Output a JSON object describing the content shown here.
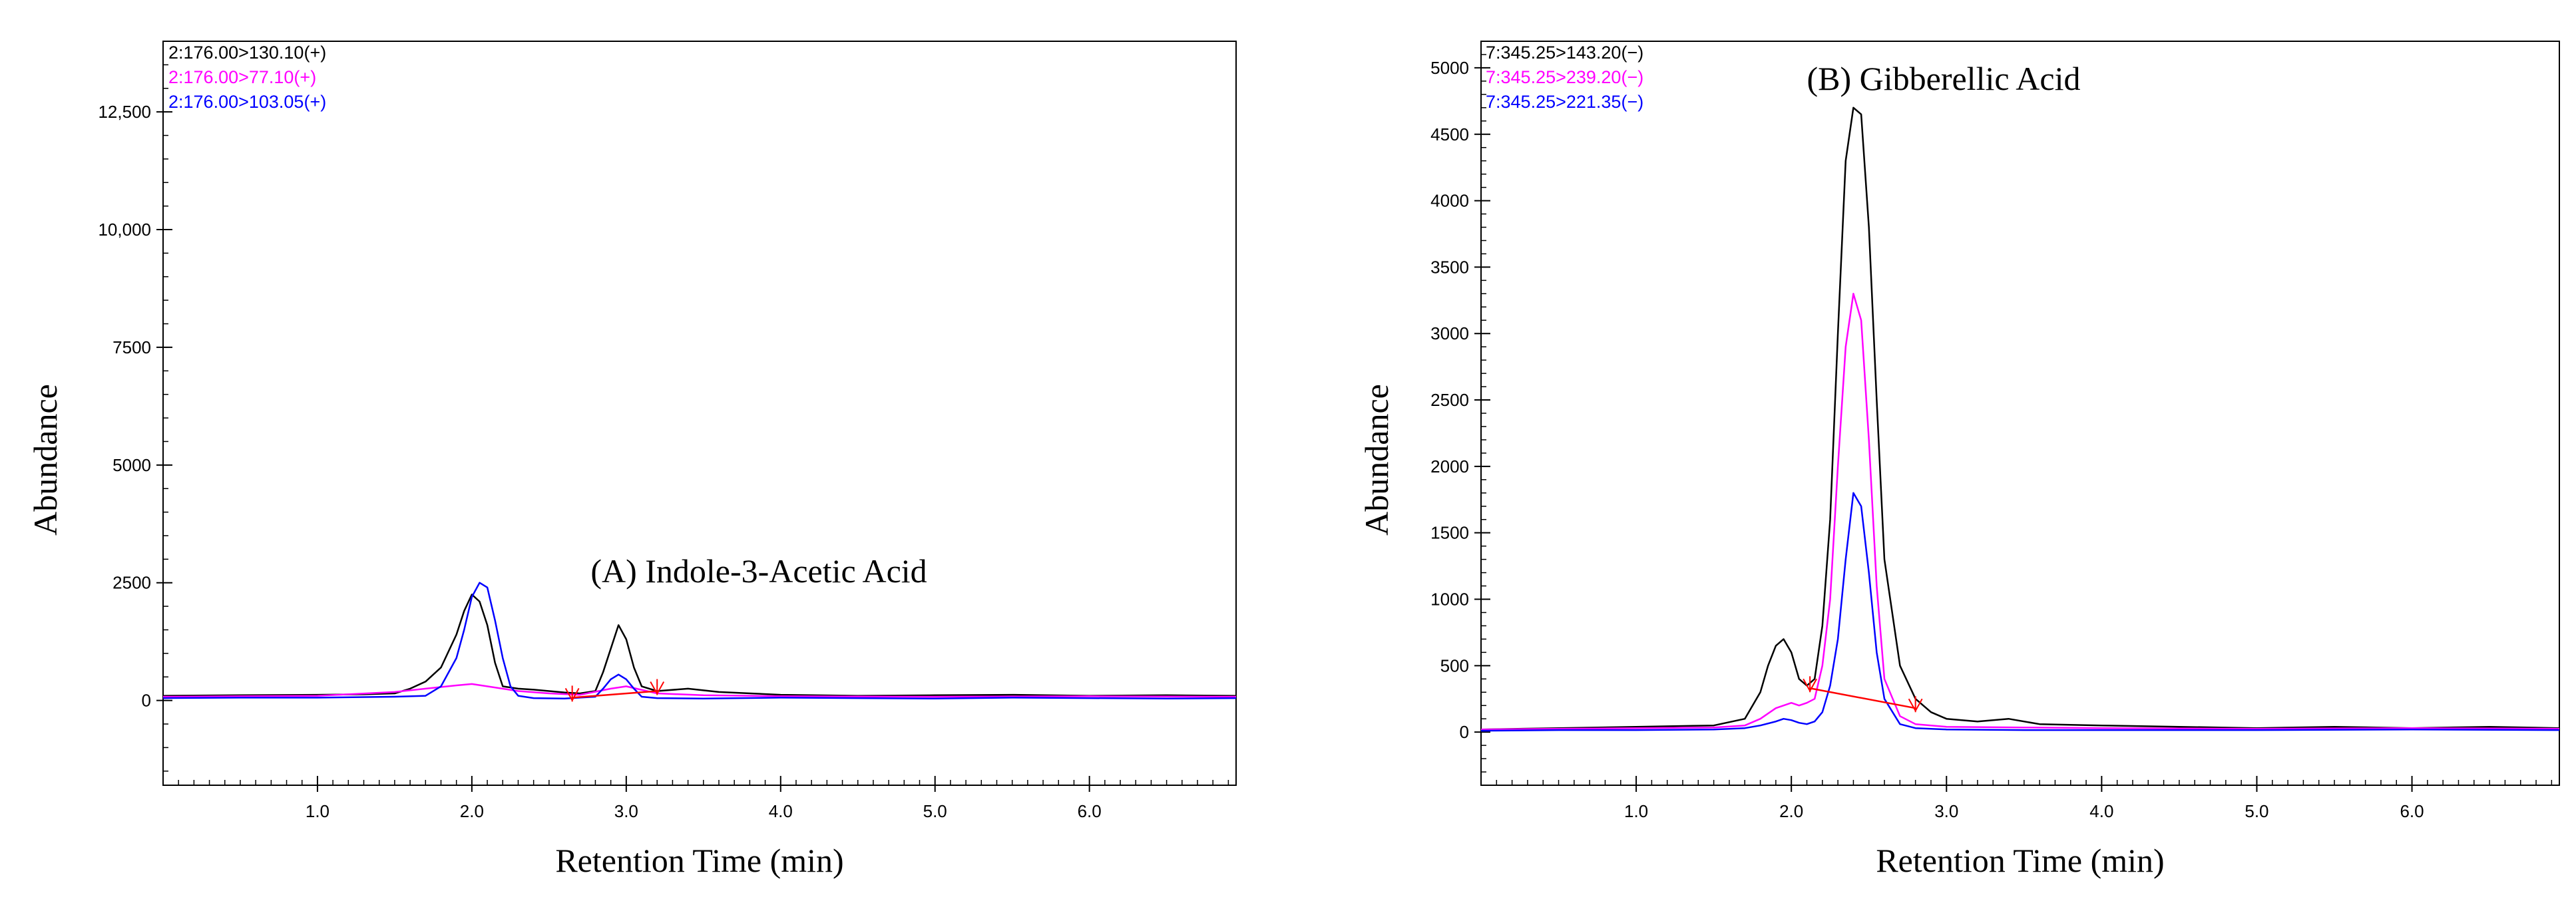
{
  "chart_data": [
    {
      "type": "line",
      "annotation": "(A) Indole-3-Acetic Acid",
      "xlabel": "Retention Time (min)",
      "ylabel": "Abundance",
      "xlim": [
        0,
        6.95
      ],
      "ylim": [
        -1800,
        14000
      ],
      "x_ticks": [
        1.0,
        2.0,
        3.0,
        4.0,
        5.0,
        6.0
      ],
      "x_tick_labels": [
        "1.0",
        "2.0",
        "3.0",
        "4.0",
        "5.0",
        "6.0"
      ],
      "y_ticks": [
        0,
        2500,
        5000,
        7500,
        10000,
        12500
      ],
      "y_tick_labels": [
        "0",
        "2500",
        "5000",
        "7500",
        "10,000",
        "12,500"
      ],
      "grid": false,
      "legend_position": "top-left",
      "series": [
        {
          "name": "2:176.00>130.10(+)",
          "color": "#000000",
          "x": [
            0,
            0.5,
            1.0,
            1.3,
            1.5,
            1.6,
            1.7,
            1.8,
            1.9,
            1.95,
            2.0,
            2.05,
            2.1,
            2.15,
            2.2,
            2.3,
            2.4,
            2.5,
            2.6,
            2.7,
            2.8,
            2.85,
            2.9,
            2.95,
            3.0,
            3.05,
            3.1,
            3.2,
            3.4,
            3.6,
            4.0,
            4.5,
            5.0,
            5.5,
            6.0,
            6.5,
            6.95
          ],
          "y": [
            100,
            110,
            120,
            130,
            150,
            250,
            400,
            700,
            1400,
            1900,
            2250,
            2100,
            1600,
            800,
            300,
            250,
            230,
            200,
            170,
            150,
            200,
            600,
            1100,
            1600,
            1300,
            700,
            300,
            200,
            250,
            180,
            120,
            100,
            110,
            120,
            100,
            110,
            100
          ]
        },
        {
          "name": "2:176.00>77.10(+)",
          "color": "#ff00ff",
          "x": [
            0,
            0.5,
            1.0,
            1.5,
            1.7,
            1.9,
            2.0,
            2.1,
            2.3,
            2.5,
            2.7,
            2.9,
            3.0,
            3.2,
            3.5,
            4.0,
            5.0,
            6.0,
            6.95
          ],
          "y": [
            80,
            90,
            100,
            180,
            250,
            320,
            350,
            300,
            200,
            150,
            120,
            250,
            300,
            150,
            110,
            90,
            80,
            90,
            80
          ]
        },
        {
          "name": "2:176.00>103.05(+)",
          "color": "#0000ff",
          "x": [
            0,
            0.5,
            1.0,
            1.5,
            1.7,
            1.8,
            1.9,
            1.95,
            2.0,
            2.05,
            2.1,
            2.15,
            2.2,
            2.25,
            2.3,
            2.4,
            2.6,
            2.8,
            2.85,
            2.9,
            2.95,
            3.0,
            3.05,
            3.1,
            3.2,
            3.5,
            4.0,
            4.5,
            5.0,
            5.5,
            6.0,
            6.5,
            6.95
          ],
          "y": [
            50,
            60,
            60,
            80,
            100,
            300,
            900,
            1500,
            2200,
            2500,
            2400,
            1700,
            900,
            300,
            100,
            50,
            40,
            80,
            250,
            450,
            550,
            450,
            250,
            80,
            50,
            40,
            60,
            50,
            40,
            60,
            50,
            40,
            50
          ]
        }
      ]
    },
    {
      "type": "line",
      "annotation": "(B) Gibberellic Acid",
      "xlabel": "Retention Time (min)",
      "ylabel": "Abundance",
      "xlim": [
        0,
        6.95
      ],
      "ylim": [
        -400,
        5200
      ],
      "x_ticks": [
        1.0,
        2.0,
        3.0,
        4.0,
        5.0,
        6.0
      ],
      "x_tick_labels": [
        "1.0",
        "2.0",
        "3.0",
        "4.0",
        "5.0",
        "6.0"
      ],
      "y_ticks": [
        0,
        500,
        1000,
        1500,
        2000,
        2500,
        3000,
        3500,
        4000,
        4500,
        5000
      ],
      "y_tick_labels": [
        "0",
        "500",
        "1000",
        "1500",
        "2000",
        "2500",
        "3000",
        "3500",
        "4000",
        "4500",
        "5000"
      ],
      "grid": false,
      "legend_position": "top-left",
      "series": [
        {
          "name": "7:345.25>143.20(−)",
          "color": "#000000",
          "x": [
            0,
            0.5,
            1.0,
            1.5,
            1.7,
            1.8,
            1.85,
            1.9,
            1.95,
            2.0,
            2.05,
            2.1,
            2.15,
            2.2,
            2.25,
            2.3,
            2.35,
            2.4,
            2.45,
            2.5,
            2.55,
            2.6,
            2.7,
            2.8,
            2.9,
            3.0,
            3.2,
            3.4,
            3.6,
            4.0,
            4.5,
            5.0,
            5.5,
            6.0,
            6.5,
            6.95
          ],
          "y": [
            20,
            30,
            40,
            50,
            100,
            300,
            500,
            650,
            700,
            600,
            400,
            350,
            400,
            800,
            1600,
            3000,
            4300,
            4700,
            4650,
            3800,
            2500,
            1300,
            500,
            250,
            150,
            100,
            80,
            100,
            60,
            50,
            40,
            30,
            40,
            30,
            40,
            30
          ]
        },
        {
          "name": "7:345.25>239.20(−)",
          "color": "#ff00ff",
          "x": [
            0,
            0.5,
            1.0,
            1.5,
            1.7,
            1.8,
            1.9,
            2.0,
            2.05,
            2.1,
            2.15,
            2.2,
            2.25,
            2.3,
            2.35,
            2.4,
            2.45,
            2.5,
            2.55,
            2.6,
            2.7,
            2.8,
            3.0,
            3.5,
            4.0,
            5.0,
            6.0,
            6.95
          ],
          "y": [
            20,
            25,
            30,
            35,
            50,
            100,
            180,
            220,
            200,
            220,
            250,
            500,
            1000,
            2000,
            2900,
            3300,
            3100,
            2200,
            1100,
            400,
            120,
            60,
            40,
            35,
            30,
            25,
            30,
            25
          ]
        },
        {
          "name": "7:345.25>221.35(−)",
          "color": "#0000ff",
          "x": [
            0,
            0.5,
            1.0,
            1.5,
            1.7,
            1.8,
            1.9,
            1.95,
            2.0,
            2.05,
            2.1,
            2.15,
            2.2,
            2.25,
            2.3,
            2.35,
            2.4,
            2.45,
            2.5,
            2.55,
            2.6,
            2.7,
            2.8,
            3.0,
            3.5,
            4.0,
            5.0,
            6.0,
            6.95
          ],
          "y": [
            10,
            15,
            15,
            20,
            30,
            50,
            80,
            100,
            90,
            70,
            60,
            80,
            150,
            350,
            700,
            1300,
            1800,
            1700,
            1200,
            600,
            250,
            60,
            30,
            20,
            15,
            15,
            15,
            20,
            15
          ]
        }
      ]
    }
  ]
}
